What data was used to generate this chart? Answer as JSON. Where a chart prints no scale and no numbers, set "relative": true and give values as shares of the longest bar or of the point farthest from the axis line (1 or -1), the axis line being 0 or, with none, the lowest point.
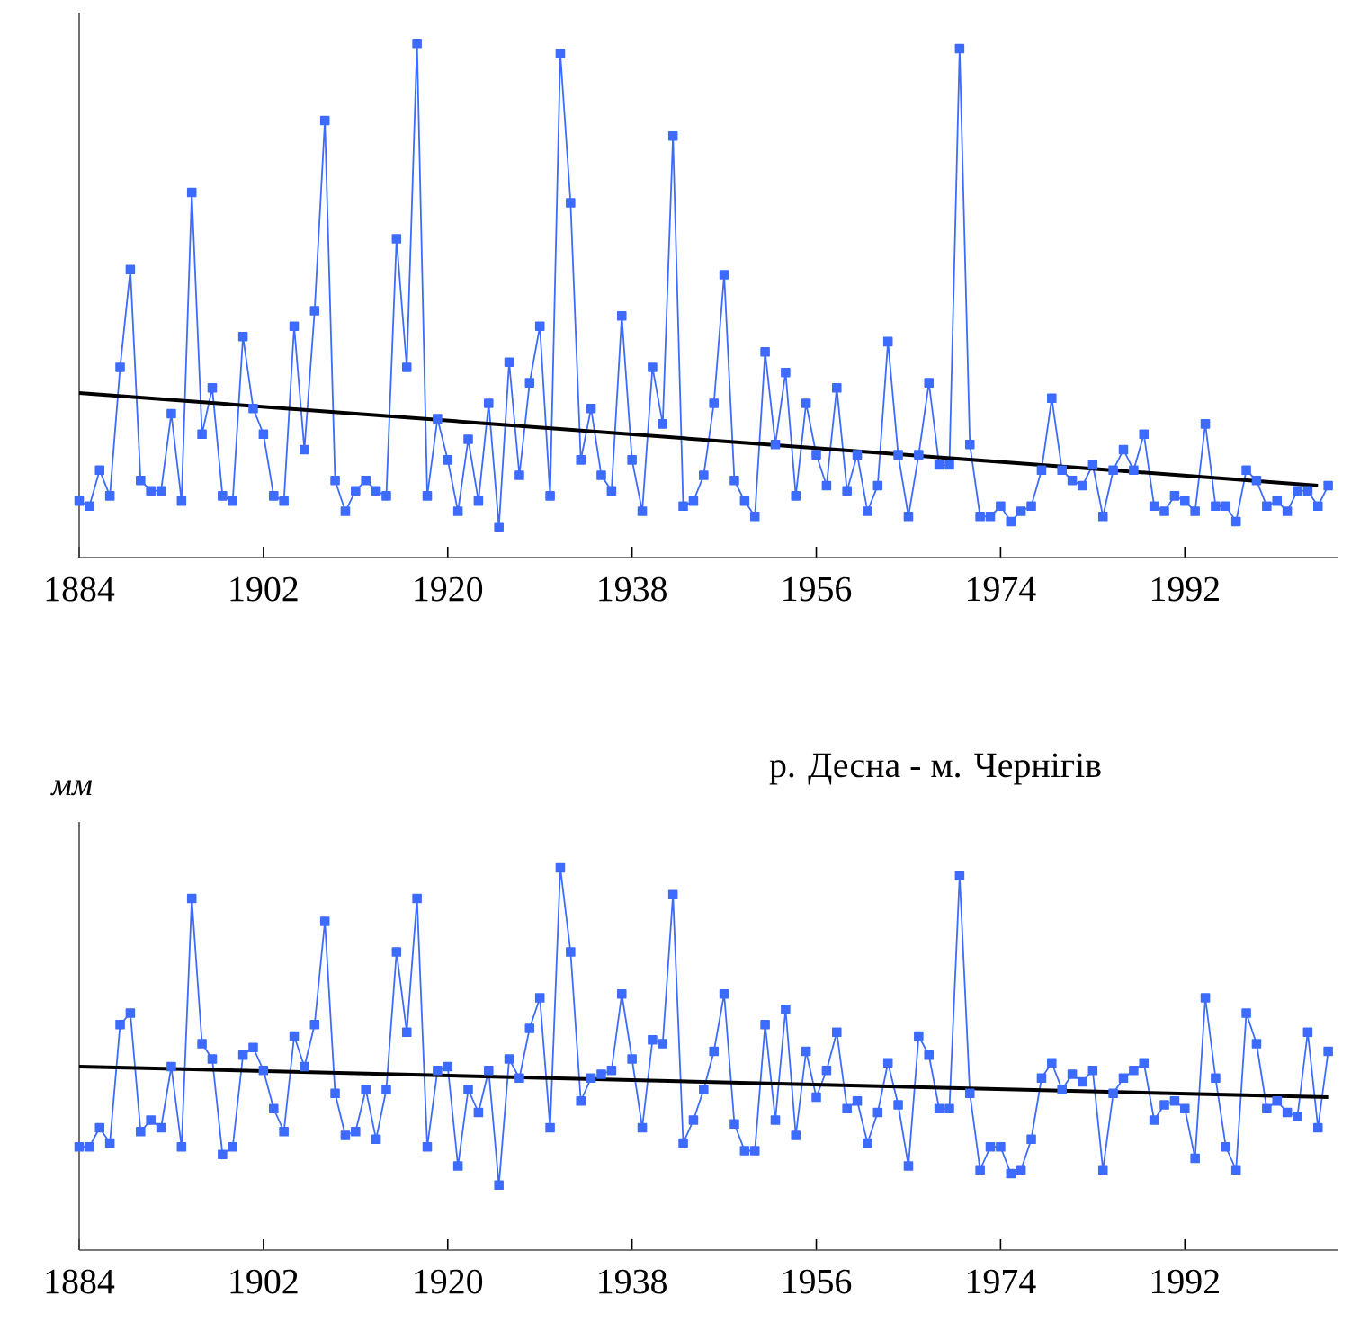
{
  "chart_data": [
    {
      "type": "line",
      "relative": true,
      "marker": "square",
      "xlim": [
        1884,
        2007
      ],
      "xticks": [
        1884,
        1902,
        1920,
        1938,
        1956,
        1974,
        1992
      ],
      "x": [
        1884,
        1885,
        1886,
        1887,
        1888,
        1889,
        1890,
        1891,
        1892,
        1893,
        1894,
        1895,
        1896,
        1897,
        1898,
        1899,
        1900,
        1901,
        1902,
        1903,
        1904,
        1905,
        1906,
        1907,
        1908,
        1909,
        1910,
        1911,
        1912,
        1913,
        1914,
        1915,
        1916,
        1917,
        1918,
        1919,
        1920,
        1921,
        1922,
        1923,
        1924,
        1925,
        1926,
        1927,
        1928,
        1929,
        1930,
        1931,
        1932,
        1933,
        1934,
        1935,
        1936,
        1937,
        1938,
        1939,
        1940,
        1941,
        1942,
        1943,
        1944,
        1945,
        1946,
        1947,
        1948,
        1949,
        1950,
        1951,
        1952,
        1953,
        1954,
        1955,
        1956,
        1957,
        1958,
        1959,
        1960,
        1961,
        1962,
        1963,
        1964,
        1965,
        1966,
        1967,
        1968,
        1969,
        1970,
        1971,
        1972,
        1973,
        1974,
        1975,
        1976,
        1977,
        1978,
        1979,
        1980,
        1981,
        1982,
        1983,
        1984,
        1985,
        1986,
        1987,
        1988,
        1989,
        1990,
        1991,
        1992,
        1993,
        1994,
        1995,
        1996,
        1997,
        1998,
        1999,
        2000,
        2001,
        2002,
        2003,
        2004,
        2005,
        2006
      ],
      "series": [
        {
          "color": "#3d6bff",
          "values": [
            0.11,
            0.1,
            0.17,
            0.12,
            0.37,
            0.56,
            0.15,
            0.13,
            0.13,
            0.28,
            0.11,
            0.71,
            0.24,
            0.33,
            0.12,
            0.11,
            0.43,
            0.29,
            0.24,
            0.12,
            0.11,
            0.45,
            0.21,
            0.48,
            0.85,
            0.15,
            0.09,
            0.13,
            0.15,
            0.13,
            0.12,
            0.62,
            0.37,
            1.0,
            0.12,
            0.27,
            0.19,
            0.09,
            0.23,
            0.11,
            0.3,
            0.06,
            0.38,
            0.16,
            0.34,
            0.45,
            0.12,
            0.98,
            0.69,
            0.19,
            0.29,
            0.16,
            0.13,
            0.47,
            0.19,
            0.09,
            0.37,
            0.26,
            0.82,
            0.1,
            0.11,
            0.16,
            0.3,
            0.55,
            0.15,
            0.11,
            0.08,
            0.4,
            0.22,
            0.36,
            0.12,
            0.3,
            0.2,
            0.14,
            0.33,
            0.13,
            0.2,
            0.09,
            0.14,
            0.42,
            0.2,
            0.08,
            0.2,
            0.34,
            0.18,
            0.18,
            0.99,
            0.22,
            0.08,
            0.08,
            0.1,
            0.07,
            0.09,
            0.1,
            0.17,
            0.31,
            0.17,
            0.15,
            0.14,
            0.18,
            0.08,
            0.17,
            0.21,
            0.17,
            0.24,
            0.1,
            0.09,
            0.12,
            0.11,
            0.09,
            0.26,
            0.1,
            0.1,
            0.07,
            0.17,
            0.15,
            0.1,
            0.11,
            0.09,
            0.13,
            0.13,
            0.1,
            0.14
          ]
        },
        {
          "type": "line",
          "marker": "none",
          "color": "#000000",
          "x": [
            1884,
            2005
          ],
          "values": [
            0.32,
            0.14
          ]
        }
      ]
    },
    {
      "type": "line",
      "relative": true,
      "marker": "square",
      "title": "р. Десна - м. Чернігів",
      "ylabel": "мм",
      "xlim": [
        1884,
        2007
      ],
      "xticks": [
        1884,
        1902,
        1920,
        1938,
        1956,
        1974,
        1992
      ],
      "x": [
        1884,
        1885,
        1886,
        1887,
        1888,
        1889,
        1890,
        1891,
        1892,
        1893,
        1894,
        1895,
        1896,
        1897,
        1898,
        1899,
        1900,
        1901,
        1902,
        1903,
        1904,
        1905,
        1906,
        1907,
        1908,
        1909,
        1910,
        1911,
        1912,
        1913,
        1914,
        1915,
        1916,
        1917,
        1918,
        1919,
        1920,
        1921,
        1922,
        1923,
        1924,
        1925,
        1926,
        1927,
        1928,
        1929,
        1930,
        1931,
        1932,
        1933,
        1934,
        1935,
        1936,
        1937,
        1938,
        1939,
        1940,
        1941,
        1942,
        1943,
        1944,
        1945,
        1946,
        1947,
        1948,
        1949,
        1950,
        1951,
        1952,
        1953,
        1954,
        1955,
        1956,
        1957,
        1958,
        1959,
        1960,
        1961,
        1962,
        1963,
        1964,
        1965,
        1966,
        1967,
        1968,
        1969,
        1970,
        1971,
        1972,
        1973,
        1974,
        1975,
        1976,
        1977,
        1978,
        1979,
        1980,
        1981,
        1982,
        1983,
        1984,
        1985,
        1986,
        1987,
        1988,
        1989,
        1990,
        1991,
        1992,
        1993,
        1994,
        1995,
        1996,
        1997,
        1998,
        1999,
        2000,
        2001,
        2002,
        2003,
        2004,
        2005,
        2006
      ],
      "series": [
        {
          "color": "#3d6bff",
          "values": [
            0.27,
            0.27,
            0.32,
            0.28,
            0.59,
            0.62,
            0.31,
            0.34,
            0.32,
            0.48,
            0.27,
            0.92,
            0.54,
            0.5,
            0.25,
            0.27,
            0.51,
            0.53,
            0.47,
            0.37,
            0.31,
            0.56,
            0.48,
            0.59,
            0.86,
            0.41,
            0.3,
            0.31,
            0.42,
            0.29,
            0.42,
            0.78,
            0.57,
            0.92,
            0.27,
            0.47,
            0.48,
            0.22,
            0.42,
            0.36,
            0.47,
            0.17,
            0.5,
            0.45,
            0.58,
            0.66,
            0.32,
            1.0,
            0.78,
            0.39,
            0.45,
            0.46,
            0.47,
            0.67,
            0.5,
            0.32,
            0.55,
            0.54,
            0.93,
            0.28,
            0.34,
            0.42,
            0.52,
            0.67,
            0.33,
            0.26,
            0.26,
            0.59,
            0.34,
            0.63,
            0.3,
            0.52,
            0.4,
            0.47,
            0.57,
            0.37,
            0.39,
            0.28,
            0.36,
            0.49,
            0.38,
            0.22,
            0.56,
            0.51,
            0.37,
            0.37,
            0.98,
            0.41,
            0.21,
            0.27,
            0.27,
            0.2,
            0.21,
            0.29,
            0.45,
            0.49,
            0.42,
            0.46,
            0.44,
            0.47,
            0.21,
            0.41,
            0.45,
            0.47,
            0.49,
            0.34,
            0.38,
            0.39,
            0.37,
            0.24,
            0.66,
            0.45,
            0.27,
            0.21,
            0.62,
            0.54,
            0.37,
            0.39,
            0.36,
            0.35,
            0.57,
            0.32,
            0.52
          ]
        },
        {
          "type": "line",
          "marker": "none",
          "color": "#000000",
          "x": [
            1884,
            2006
          ],
          "values": [
            0.48,
            0.4
          ]
        }
      ]
    }
  ]
}
